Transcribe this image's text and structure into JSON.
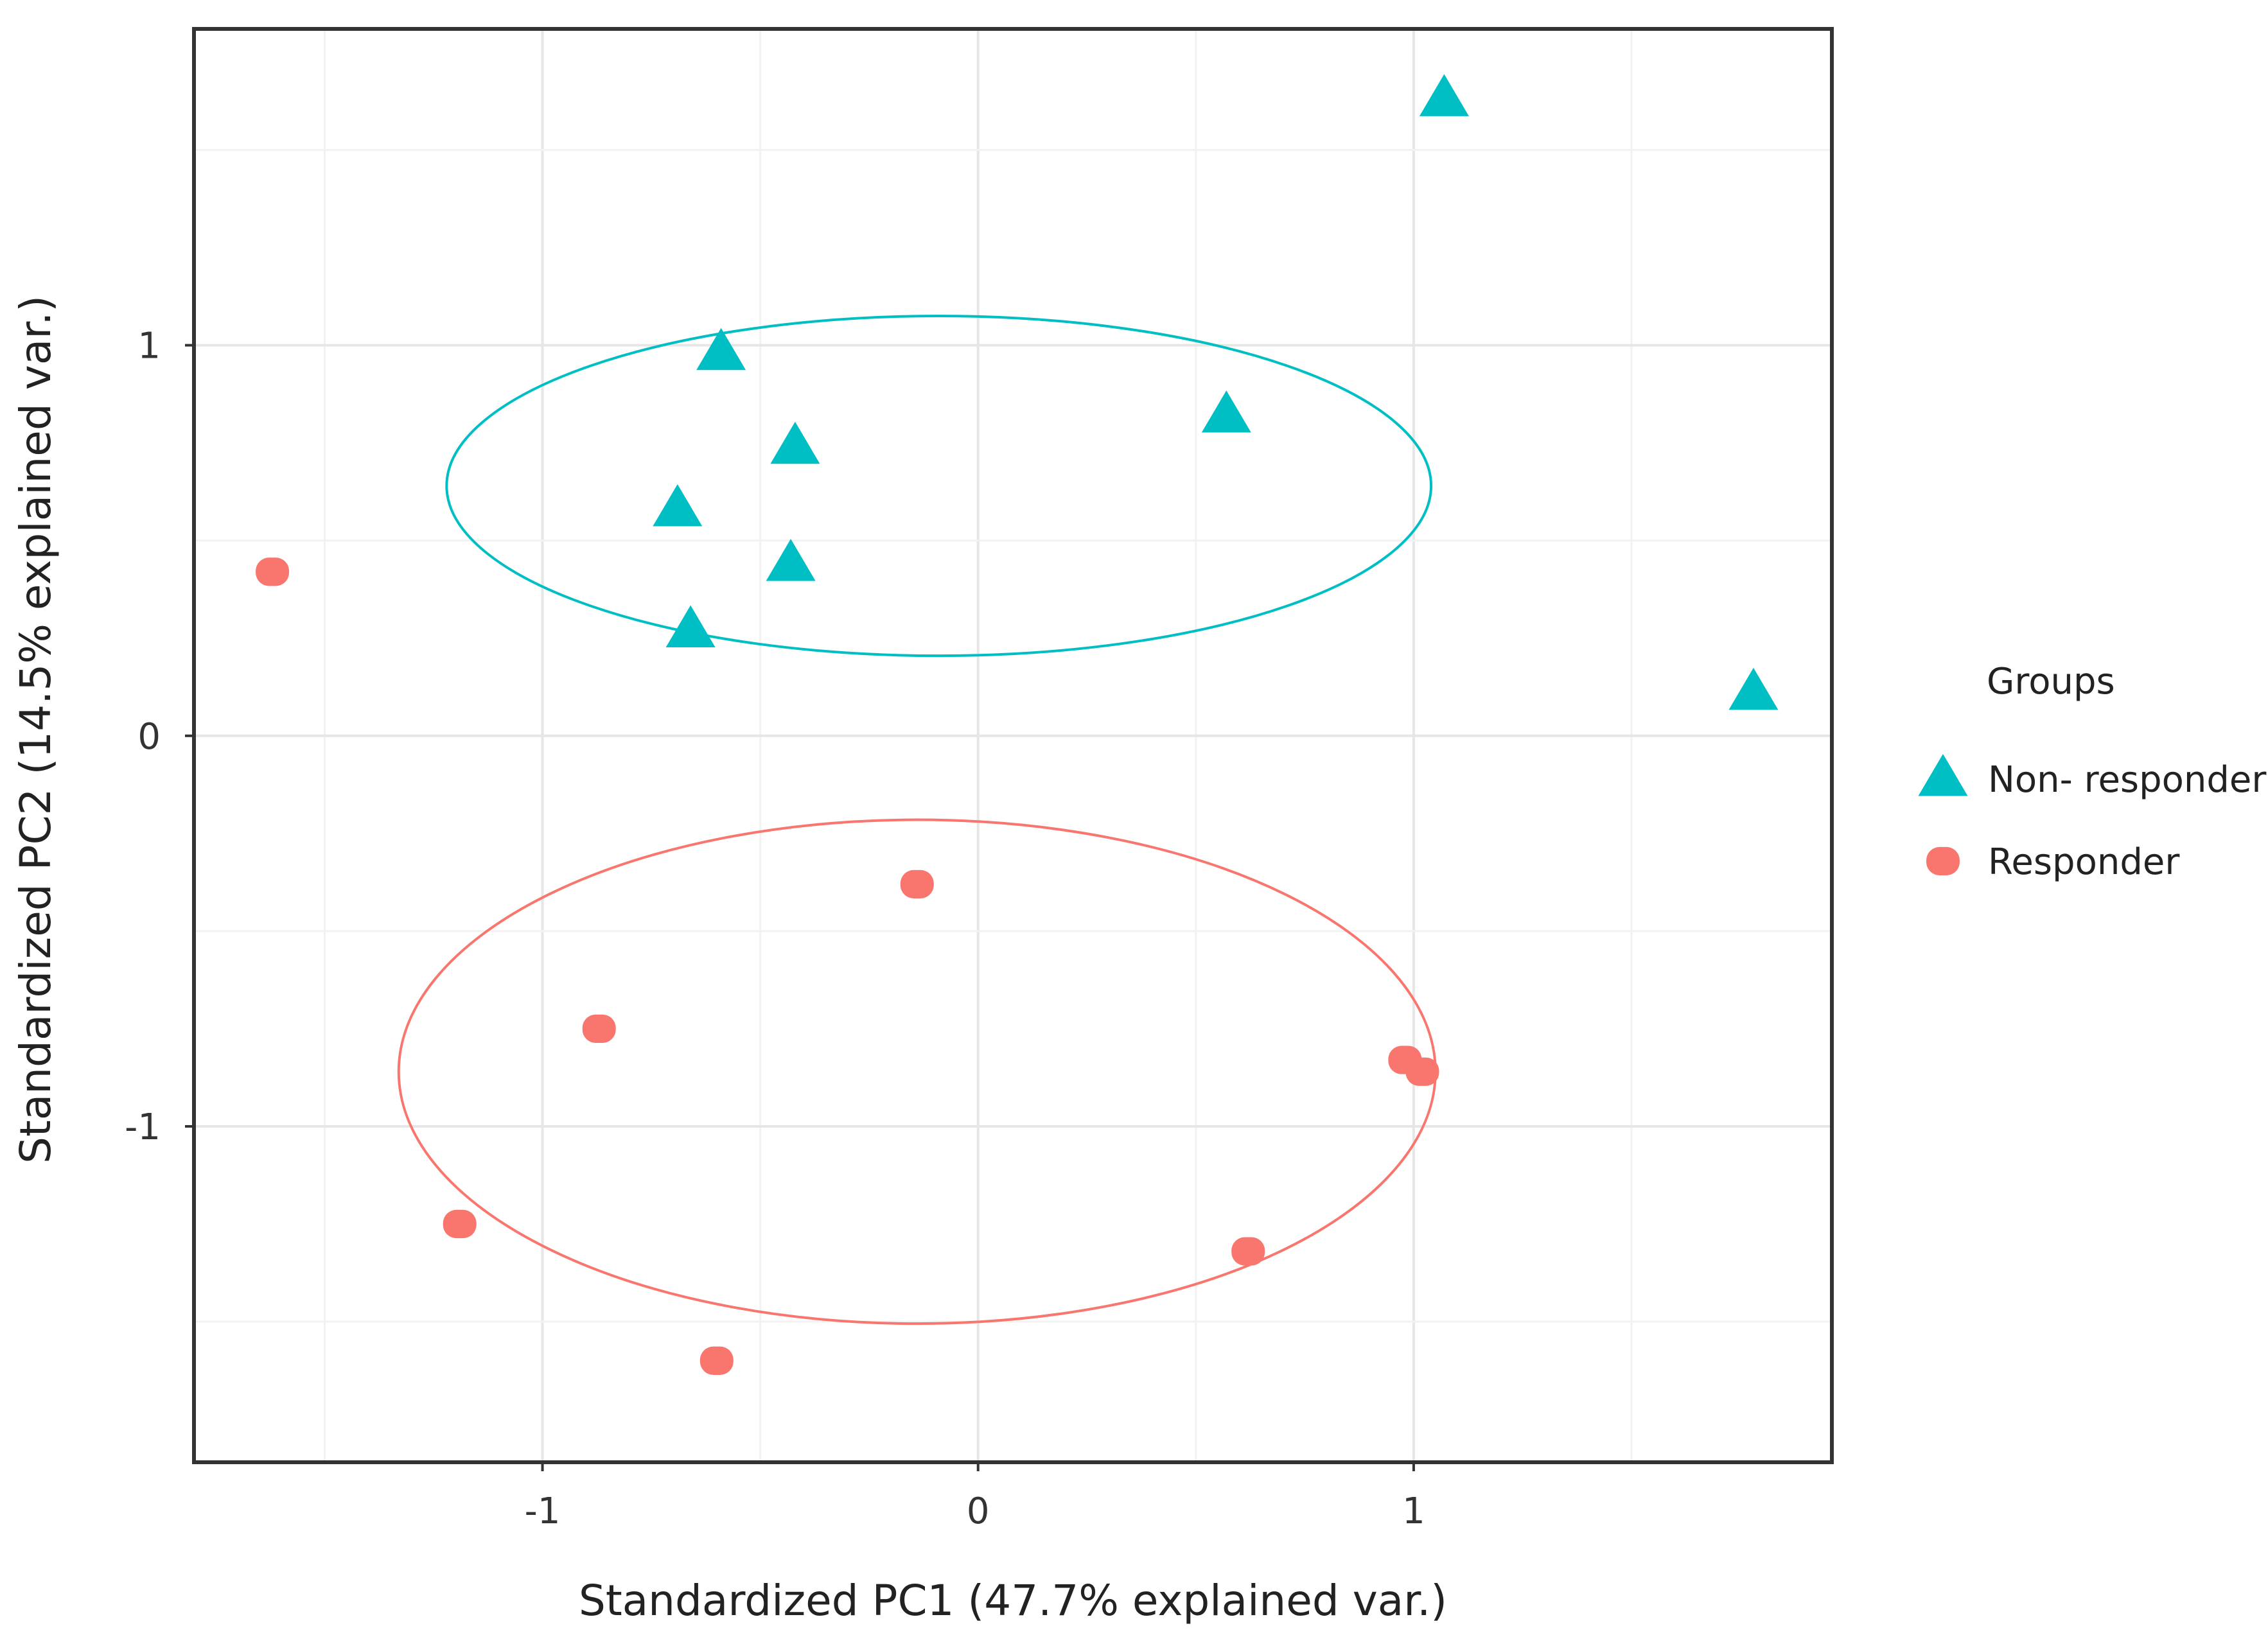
{
  "chart_data": {
    "type": "scatter",
    "title": "",
    "xlabel": "Standardized PC1 (47.7% explained var.)",
    "ylabel": "Standardized PC2 (14.5% explained var.)",
    "xlim": [
      -1.8,
      1.96
    ],
    "ylim": [
      -1.86,
      1.81
    ],
    "x_ticks": [
      -1,
      0,
      1
    ],
    "x_tick_labels": [
      "-1",
      "0",
      "1"
    ],
    "y_ticks": [
      -1,
      0,
      1
    ],
    "y_tick_labels": [
      "-1",
      "0",
      "1"
    ],
    "grid": true,
    "legend": {
      "title": "Groups",
      "position": "right",
      "entries": [
        "Non- responder",
        "Responder"
      ]
    },
    "series": [
      {
        "name": "Non- responder",
        "marker": "triangle",
        "color": "#00BFC4",
        "points": [
          {
            "x": 1.07,
            "y": 1.63
          },
          {
            "x": -0.59,
            "y": 0.98
          },
          {
            "x": -0.42,
            "y": 0.74
          },
          {
            "x": 0.57,
            "y": 0.82
          },
          {
            "x": -0.69,
            "y": 0.58
          },
          {
            "x": -0.43,
            "y": 0.44
          },
          {
            "x": -0.66,
            "y": 0.27
          },
          {
            "x": 1.78,
            "y": 0.11
          }
        ],
        "ellipse": {
          "cx": -0.09,
          "cy": 0.64,
          "rx": 1.13,
          "ry": 0.435
        }
      },
      {
        "name": "Responder",
        "marker": "circle",
        "color": "#F8766D",
        "points": [
          {
            "x": -1.62,
            "y": 0.42
          },
          {
            "x": -0.14,
            "y": -0.38
          },
          {
            "x": -0.87,
            "y": -0.75
          },
          {
            "x": 0.98,
            "y": -0.83
          },
          {
            "x": 1.02,
            "y": -0.86
          },
          {
            "x": -1.19,
            "y": -1.25
          },
          {
            "x": 0.62,
            "y": -1.32
          },
          {
            "x": -0.6,
            "y": -1.6
          }
        ],
        "ellipse": {
          "cx": -0.14,
          "cy": -0.86,
          "rx": 1.19,
          "ry": 0.645
        }
      }
    ]
  }
}
